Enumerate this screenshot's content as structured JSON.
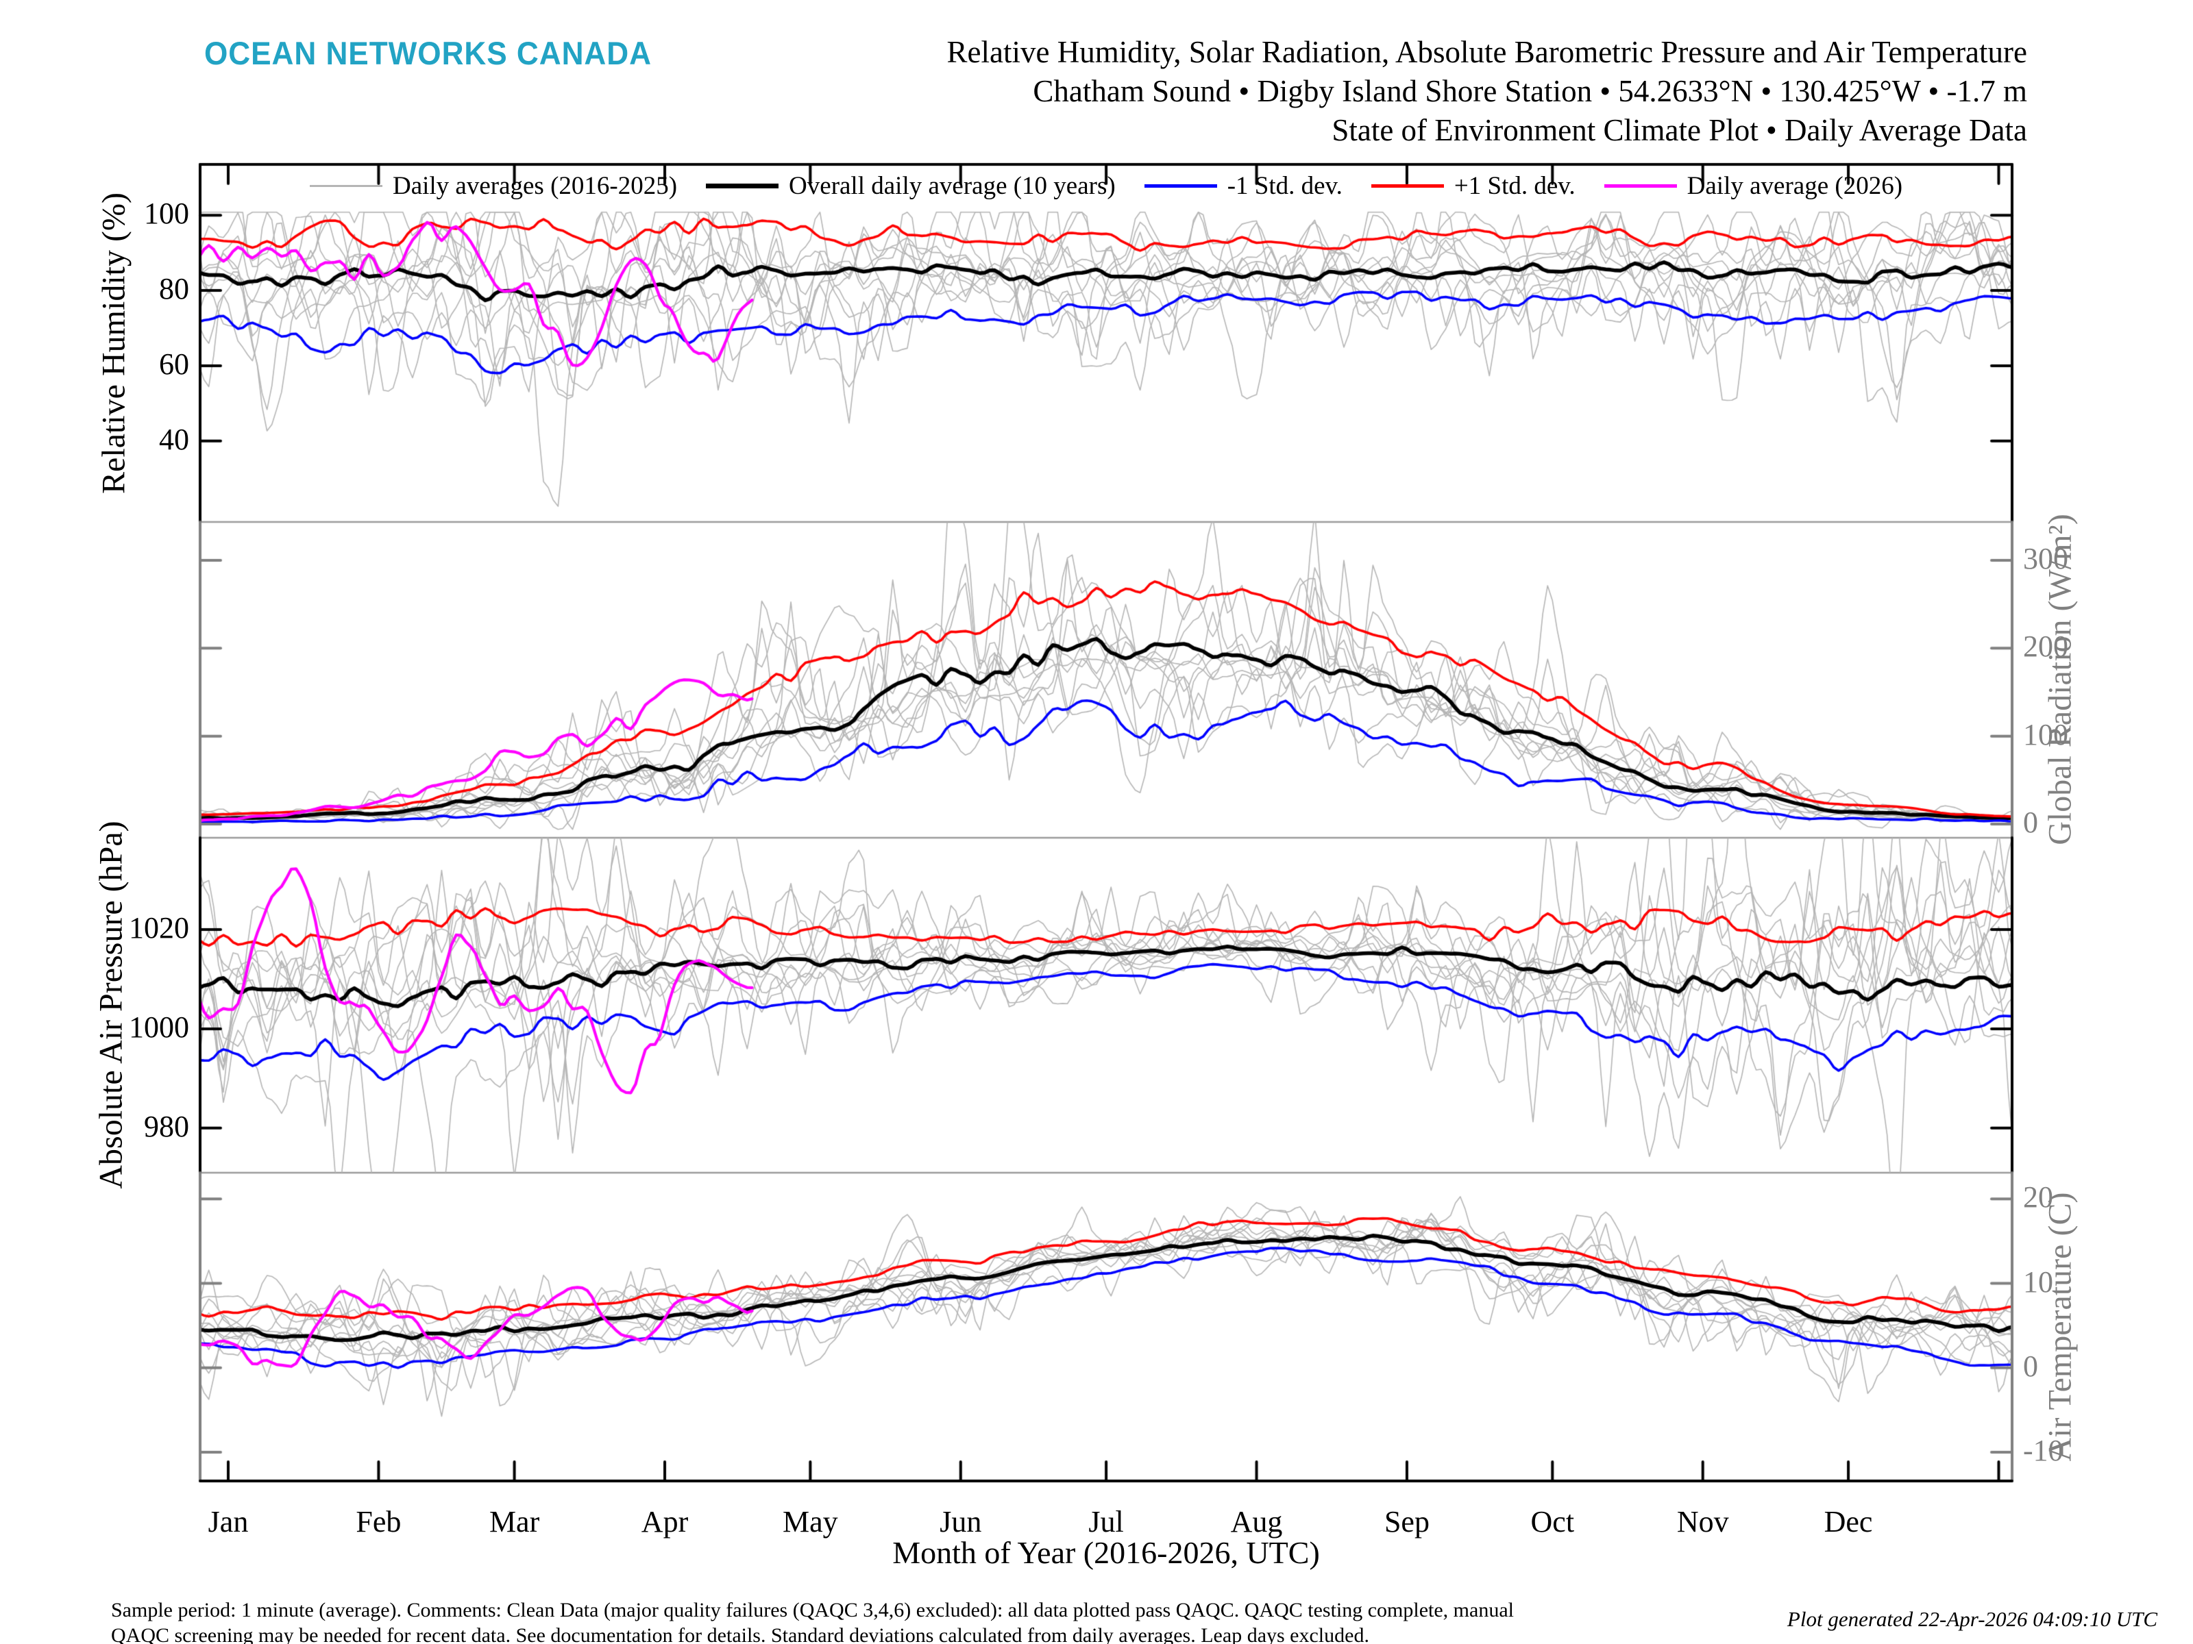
{
  "header": {
    "logo": "OCEAN NETWORKS CANADA",
    "title_line1": "Relative Humidity, Solar Radiation, Absolute Barometric Pressure and Air Temperature",
    "title_line2": "Chatham Sound • Digby Island Shore Station • 54.2633°N • 130.425°W • -1.7 m",
    "title_line3": "State of Environment Climate Plot • Daily Average Data"
  },
  "legend": {
    "items": [
      {
        "label": "Daily averages (2016-2025)",
        "color": "#b5b5b5",
        "thickness": 3
      },
      {
        "label": "Overall daily average (10 years)",
        "color": "#000000",
        "thickness": 7
      },
      {
        "label": "-1 Std. dev.",
        "color": "#0000ff",
        "thickness": 5
      },
      {
        "label": "+1 Std. dev.",
        "color": "#ff0000",
        "thickness": 5
      },
      {
        "label": "Daily average (2026)",
        "color": "#ff00ff",
        "thickness": 5
      }
    ]
  },
  "footer": {
    "line1": "Sample period: 1 minute (average). Comments: Clean Data (major quality failures (QAQC 3,4,6) excluded): all data plotted pass QAQC. QAQC testing complete, manual",
    "line2": "QAQC screening may be needed for recent data. See documentation for details. Standard deviations calculated from daily averages. Leap days excluded.",
    "generated": "Plot generated 22-Apr-2026 04:09:10 UTC"
  },
  "colors": {
    "brand_teal": "#22a3c4",
    "gray_axis": "#808080",
    "gray_trace": "#b5b5b5",
    "mean_line": "#000000",
    "minus1sd": "#0000ff",
    "plus1sd": "#ff0000",
    "year2026": "#ff00ff"
  },
  "chart_data": {
    "type": "line",
    "x_axis": {
      "label": "Month of Year (2016-2026, UTC)",
      "months": [
        "Jan",
        "Feb",
        "Mar",
        "Apr",
        "May",
        "Jun",
        "Jul",
        "Aug",
        "Sep",
        "Oct",
        "Nov",
        "Dec"
      ],
      "month_start_days": [
        0,
        31,
        59,
        90,
        120,
        151,
        181,
        212,
        243,
        273,
        304,
        334,
        365
      ]
    },
    "gray_years": 10,
    "panels": [
      {
        "id": "relative-humidity",
        "ylabel": "Relative Humidity (%)",
        "label_side": "left",
        "axis_color": "#000000",
        "ylim": [
          18.5,
          113.5
        ],
        "yticks": [
          100,
          80,
          60,
          40
        ],
        "knot_days": [
          0,
          31,
          59,
          90,
          120,
          151,
          181,
          212,
          243,
          273,
          304,
          334,
          365
        ],
        "series": {
          "overall_mean": [
            82,
            83,
            80,
            82,
            84,
            84,
            83.5,
            84,
            85.5,
            86,
            85,
            83,
            86
          ],
          "plus1sd": [
            93,
            95,
            94,
            96,
            95,
            94,
            93,
            93,
            94,
            94.5,
            93.5,
            93,
            95
          ],
          "minus1sd": [
            70,
            67,
            62,
            67,
            71,
            73,
            74,
            76,
            78,
            78,
            74,
            71,
            76
          ]
        },
        "series_2026": {
          "days": [
            0,
            12,
            24,
            36,
            48,
            60,
            72,
            84,
            96,
            108
          ],
          "values": [
            90,
            92,
            91,
            89,
            92,
            85,
            64,
            88,
            58,
            84
          ]
        }
      },
      {
        "id": "global-radiation",
        "ylabel": "Global Radiation (W/m²)",
        "label_side": "right",
        "axis_color": "#808080",
        "ylim": [
          -15.6,
          343.7
        ],
        "yticks": [
          300,
          200,
          100,
          0
        ],
        "knot_days": [
          0,
          31,
          59,
          90,
          120,
          151,
          181,
          212,
          243,
          273,
          304,
          334,
          365
        ],
        "series": {
          "overall_mean": [
            7,
            12,
            28,
            62,
            112,
            158,
            192,
            188,
            148,
            92,
            40,
            13,
            6
          ],
          "plus1sd": [
            11,
            20,
            48,
            100,
            170,
            230,
            262,
            255,
            205,
            135,
            64,
            22,
            10
          ],
          "minus1sd": [
            3,
            6,
            13,
            33,
            62,
            92,
            124,
            118,
            90,
            52,
            19,
            6,
            3
          ]
        },
        "series_2026": {
          "days": [
            0,
            12,
            24,
            36,
            48,
            60,
            72,
            84,
            96,
            108
          ],
          "values": [
            6,
            10,
            18,
            35,
            55,
            80,
            105,
            130,
            155,
            150
          ]
        }
      },
      {
        "id": "absolute-air-pressure",
        "ylabel": "Absolute Air Pressure (hPa)",
        "label_side": "left",
        "axis_color": "#000000",
        "ylim": [
          971.0,
          1038.5
        ],
        "yticks": [
          1020,
          1000,
          980
        ],
        "knot_days": [
          0,
          31,
          59,
          90,
          120,
          151,
          181,
          212,
          243,
          273,
          304,
          334,
          365
        ],
        "series": {
          "overall_mean": [
            1007,
            1007,
            1010,
            1011,
            1012,
            1013,
            1015,
            1016,
            1015,
            1011.5,
            1008,
            1009,
            1012
          ],
          "plus1sd": [
            1019,
            1020,
            1022,
            1021,
            1019,
            1018,
            1018.5,
            1019.5,
            1020,
            1021,
            1021.5,
            1022,
            1023
          ],
          "minus1sd": [
            995,
            994,
            999,
            1002,
            1005,
            1008,
            1011,
            1012,
            1009.5,
            1001,
            995,
            996,
            1001
          ]
        },
        "series_2026": {
          "days": [
            0,
            12,
            24,
            36,
            48,
            60,
            72,
            84,
            96,
            108
          ],
          "values": [
            1005,
            1030,
            1005,
            995,
            1013,
            1000,
            1006,
            992,
            1013,
            1008
          ]
        }
      },
      {
        "id": "air-temperature",
        "ylabel": "Air Temperature (C)",
        "label_side": "right",
        "axis_color": "#808080",
        "ylim": [
          -13.4,
          23.1
        ],
        "yticks": [
          20,
          10,
          0,
          -10
        ],
        "knot_days": [
          0,
          31,
          59,
          90,
          120,
          151,
          181,
          212,
          243,
          273,
          304,
          334,
          365
        ],
        "series": {
          "overall_mean": [
            4.5,
            3.8,
            4.2,
            5.8,
            8.0,
            10.8,
            13.2,
            15.3,
            15.0,
            12.2,
            8.5,
            5.8,
            4.2
          ],
          "plus1sd": [
            7.0,
            6.6,
            6.6,
            8.0,
            10.2,
            12.8,
            15.0,
            17.2,
            17.0,
            14.2,
            10.6,
            8.0,
            6.8
          ],
          "minus1sd": [
            2.0,
            0.8,
            1.8,
            3.6,
            5.8,
            8.8,
            11.4,
            13.6,
            13.2,
            10.2,
            6.2,
            3.2,
            0.2
          ]
        },
        "series_2026": {
          "days": [
            0,
            12,
            24,
            36,
            48,
            60,
            72,
            84,
            96,
            108
          ],
          "values": [
            3,
            1,
            8,
            5,
            1,
            7,
            9,
            3,
            8,
            7
          ]
        }
      }
    ]
  }
}
